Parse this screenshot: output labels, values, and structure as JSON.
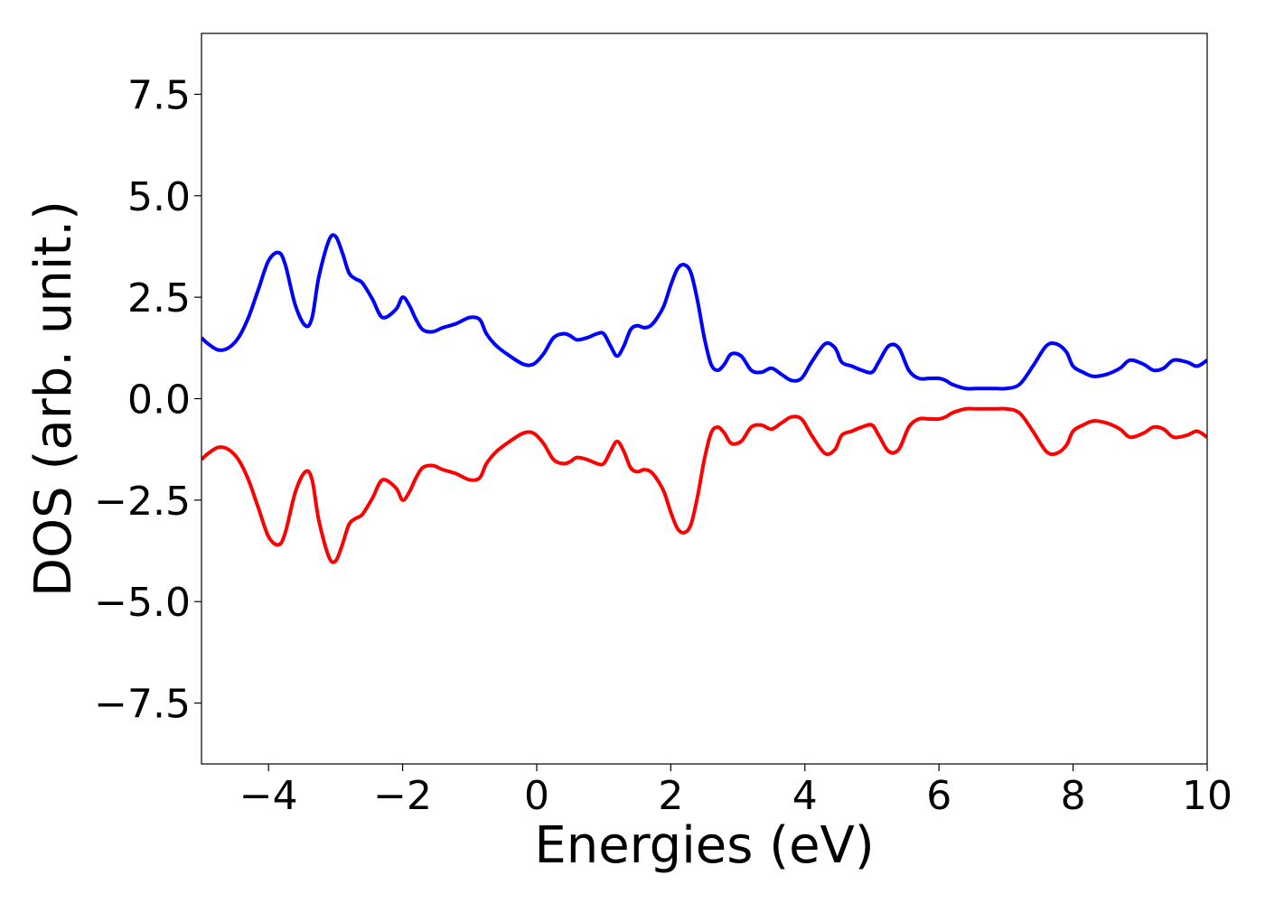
{
  "chart_data": {
    "type": "line",
    "title": "",
    "xlabel": "Energies (eV)",
    "ylabel": "DOS (arb. unit.)",
    "xlim": [
      -5,
      10
    ],
    "ylim": [
      -9.0,
      9.0
    ],
    "x_ticks": [
      -4,
      -2,
      0,
      2,
      4,
      6,
      8,
      10
    ],
    "x_tick_labels": [
      "−4",
      "−2",
      "0",
      "2",
      "4",
      "6",
      "8",
      "10"
    ],
    "y_ticks": [
      7.5,
      5.0,
      2.5,
      0.0,
      -2.5,
      -5.0,
      -7.5
    ],
    "y_tick_labels": [
      "7.5",
      "5.0",
      "2.5",
      "0.0",
      "−2.5",
      "−5.0",
      "−7.5"
    ],
    "grid": false,
    "legend": false,
    "series": [
      {
        "color": "#0000ff",
        "x": [
          -5.0,
          -4.9,
          -4.75,
          -4.6,
          -4.45,
          -4.3,
          -4.15,
          -4.0,
          -3.85,
          -3.75,
          -3.6,
          -3.45,
          -3.35,
          -3.25,
          -3.1,
          -3.0,
          -2.9,
          -2.8,
          -2.7,
          -2.6,
          -2.45,
          -2.3,
          -2.1,
          -2.0,
          -1.9,
          -1.8,
          -1.7,
          -1.55,
          -1.4,
          -1.2,
          -1.0,
          -0.85,
          -0.75,
          -0.6,
          -0.4,
          -0.2,
          -0.05,
          0.1,
          0.25,
          0.4,
          0.5,
          0.6,
          0.75,
          0.9,
          1.0,
          1.1,
          1.2,
          1.3,
          1.4,
          1.5,
          1.6,
          1.7,
          1.8,
          1.9,
          2.0,
          2.1,
          2.2,
          2.3,
          2.4,
          2.5,
          2.6,
          2.7,
          2.8,
          2.9,
          3.05,
          3.2,
          3.35,
          3.5,
          3.65,
          3.8,
          3.95,
          4.1,
          4.3,
          4.45,
          4.55,
          4.7,
          4.85,
          5.0,
          5.1,
          5.25,
          5.4,
          5.55,
          5.7,
          5.85,
          6.0,
          6.1,
          6.2,
          6.4,
          6.55,
          6.7,
          6.85,
          7.0,
          7.2,
          7.4,
          7.6,
          7.75,
          7.9,
          8.0,
          8.15,
          8.3,
          8.5,
          8.7,
          8.85,
          9.05,
          9.2,
          9.35,
          9.5,
          9.7,
          9.85,
          10.0
        ],
        "y": [
          1.5,
          1.35,
          1.2,
          1.25,
          1.5,
          2.0,
          2.7,
          3.4,
          3.6,
          3.3,
          2.3,
          1.8,
          2.0,
          3.0,
          3.9,
          4.0,
          3.6,
          3.1,
          2.95,
          2.85,
          2.45,
          2.0,
          2.2,
          2.5,
          2.3,
          1.95,
          1.7,
          1.65,
          1.75,
          1.85,
          2.0,
          1.95,
          1.6,
          1.3,
          1.05,
          0.85,
          0.85,
          1.1,
          1.5,
          1.6,
          1.55,
          1.45,
          1.5,
          1.6,
          1.6,
          1.3,
          1.05,
          1.3,
          1.7,
          1.8,
          1.75,
          1.8,
          2.0,
          2.3,
          2.8,
          3.2,
          3.3,
          3.1,
          2.4,
          1.5,
          0.85,
          0.7,
          0.85,
          1.1,
          1.05,
          0.7,
          0.65,
          0.75,
          0.6,
          0.45,
          0.5,
          0.9,
          1.35,
          1.25,
          0.9,
          0.8,
          0.7,
          0.65,
          0.9,
          1.3,
          1.25,
          0.7,
          0.5,
          0.5,
          0.5,
          0.45,
          0.35,
          0.25,
          0.25,
          0.25,
          0.25,
          0.25,
          0.35,
          0.8,
          1.3,
          1.35,
          1.15,
          0.8,
          0.65,
          0.55,
          0.6,
          0.75,
          0.95,
          0.85,
          0.7,
          0.75,
          0.95,
          0.9,
          0.8,
          0.95
        ]
      },
      {
        "color": "#ff0000",
        "x": [
          -5.0,
          -4.9,
          -4.75,
          -4.6,
          -4.45,
          -4.3,
          -4.15,
          -4.0,
          -3.85,
          -3.75,
          -3.6,
          -3.45,
          -3.35,
          -3.25,
          -3.1,
          -3.0,
          -2.9,
          -2.8,
          -2.7,
          -2.6,
          -2.45,
          -2.3,
          -2.1,
          -2.0,
          -1.9,
          -1.8,
          -1.7,
          -1.55,
          -1.4,
          -1.2,
          -1.0,
          -0.85,
          -0.75,
          -0.6,
          -0.4,
          -0.2,
          -0.05,
          0.1,
          0.25,
          0.4,
          0.5,
          0.6,
          0.75,
          0.9,
          1.0,
          1.1,
          1.2,
          1.3,
          1.4,
          1.5,
          1.6,
          1.7,
          1.8,
          1.9,
          2.0,
          2.1,
          2.2,
          2.3,
          2.4,
          2.5,
          2.6,
          2.7,
          2.8,
          2.9,
          3.05,
          3.2,
          3.35,
          3.5,
          3.65,
          3.8,
          3.95,
          4.1,
          4.3,
          4.45,
          4.55,
          4.7,
          4.85,
          5.0,
          5.1,
          5.25,
          5.4,
          5.55,
          5.7,
          5.85,
          6.0,
          6.1,
          6.2,
          6.4,
          6.55,
          6.7,
          6.85,
          7.0,
          7.2,
          7.4,
          7.6,
          7.75,
          7.9,
          8.0,
          8.15,
          8.3,
          8.5,
          8.7,
          8.85,
          9.05,
          9.2,
          9.35,
          9.5,
          9.7,
          9.85,
          10.0
        ],
        "y": [
          -1.5,
          -1.35,
          -1.2,
          -1.25,
          -1.5,
          -2.0,
          -2.7,
          -3.4,
          -3.6,
          -3.3,
          -2.3,
          -1.8,
          -2.0,
          -3.0,
          -3.9,
          -4.0,
          -3.6,
          -3.1,
          -2.95,
          -2.85,
          -2.45,
          -2.0,
          -2.2,
          -2.5,
          -2.3,
          -1.95,
          -1.7,
          -1.65,
          -1.75,
          -1.85,
          -2.0,
          -1.95,
          -1.6,
          -1.3,
          -1.05,
          -0.85,
          -0.85,
          -1.1,
          -1.5,
          -1.6,
          -1.55,
          -1.45,
          -1.5,
          -1.6,
          -1.6,
          -1.3,
          -1.05,
          -1.3,
          -1.7,
          -1.8,
          -1.75,
          -1.8,
          -2.0,
          -2.3,
          -2.8,
          -3.2,
          -3.3,
          -3.1,
          -2.4,
          -1.5,
          -0.85,
          -0.7,
          -0.85,
          -1.1,
          -1.05,
          -0.7,
          -0.65,
          -0.75,
          -0.6,
          -0.45,
          -0.5,
          -0.9,
          -1.35,
          -1.25,
          -0.9,
          -0.8,
          -0.7,
          -0.65,
          -0.9,
          -1.3,
          -1.25,
          -0.7,
          -0.5,
          -0.5,
          -0.5,
          -0.45,
          -0.35,
          -0.25,
          -0.25,
          -0.25,
          -0.25,
          -0.25,
          -0.35,
          -0.8,
          -1.3,
          -1.35,
          -1.15,
          -0.8,
          -0.65,
          -0.55,
          -0.6,
          -0.75,
          -0.95,
          -0.85,
          -0.7,
          -0.75,
          -0.95,
          -0.9,
          -0.8,
          -0.95
        ]
      }
    ]
  }
}
